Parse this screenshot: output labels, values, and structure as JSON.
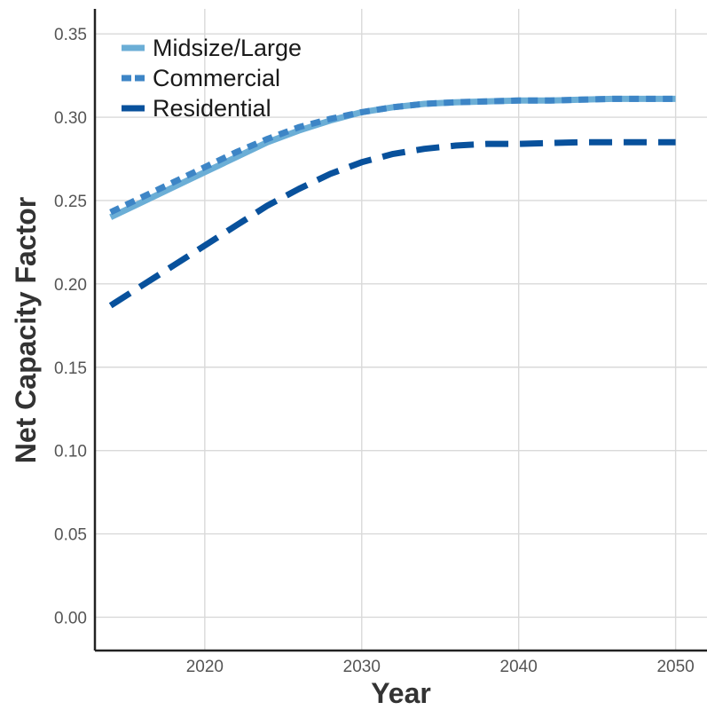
{
  "chart_data": {
    "type": "line",
    "xlabel": "Year",
    "ylabel": "Net Capacity Factor",
    "xlim": [
      2013,
      2052
    ],
    "ylim": [
      -0.02,
      0.365
    ],
    "x_ticks": [
      2020,
      2030,
      2040,
      2050
    ],
    "y_ticks": [
      0.0,
      0.05,
      0.1,
      0.15,
      0.2,
      0.25,
      0.3,
      0.35
    ],
    "y_tick_labels": [
      "0.00",
      "0.05",
      "0.10",
      "0.15",
      "0.20",
      "0.25",
      "0.30",
      "0.35"
    ],
    "grid": true,
    "legend_position": "top-left",
    "series": [
      {
        "name": "Midsize/Large",
        "color": "#6baed6",
        "style": "solid",
        "x": [
          2014,
          2016,
          2018,
          2020,
          2022,
          2024,
          2026,
          2028,
          2030,
          2032,
          2034,
          2036,
          2038,
          2040,
          2042,
          2044,
          2046,
          2048,
          2050
        ],
        "y": [
          0.24,
          0.249,
          0.258,
          0.267,
          0.276,
          0.285,
          0.292,
          0.298,
          0.303,
          0.306,
          0.308,
          0.309,
          0.3095,
          0.31,
          0.31,
          0.3105,
          0.311,
          0.311,
          0.311
        ]
      },
      {
        "name": "Commercial",
        "color": "#3d85c6",
        "style": "dashed",
        "x": [
          2014,
          2016,
          2018,
          2020,
          2022,
          2024,
          2026,
          2028,
          2030,
          2032,
          2034,
          2036,
          2038,
          2040,
          2042,
          2044,
          2046,
          2048,
          2050
        ],
        "y": [
          0.243,
          0.252,
          0.261,
          0.27,
          0.279,
          0.287,
          0.294,
          0.299,
          0.303,
          0.306,
          0.308,
          0.309,
          0.3095,
          0.31,
          0.31,
          0.3105,
          0.311,
          0.311,
          0.311
        ]
      },
      {
        "name": "Residential",
        "color": "#08519c",
        "style": "dashed",
        "x": [
          2014,
          2016,
          2018,
          2020,
          2022,
          2024,
          2026,
          2028,
          2030,
          2032,
          2034,
          2036,
          2038,
          2040,
          2042,
          2044,
          2046,
          2048,
          2050
        ],
        "y": [
          0.187,
          0.199,
          0.211,
          0.223,
          0.235,
          0.247,
          0.257,
          0.266,
          0.273,
          0.278,
          0.281,
          0.283,
          0.284,
          0.284,
          0.2845,
          0.285,
          0.285,
          0.285,
          0.285
        ]
      }
    ]
  }
}
